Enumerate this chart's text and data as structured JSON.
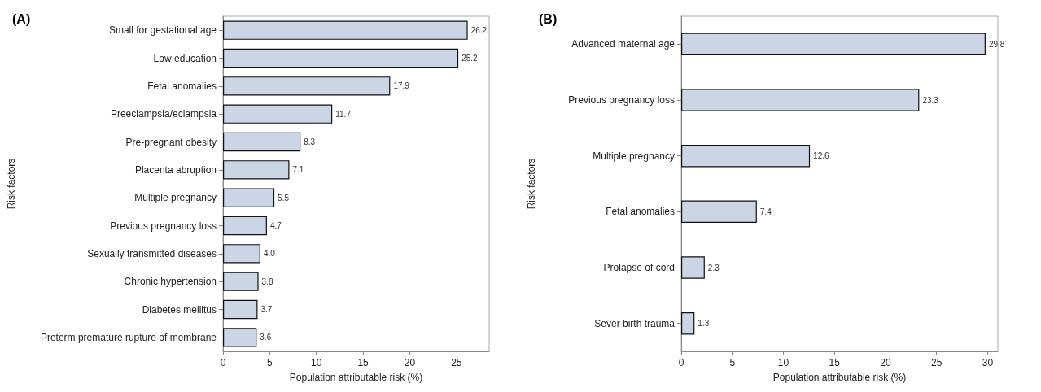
{
  "chart_data": [
    {
      "type": "bar",
      "title": "(A)",
      "orientation": "horizontal",
      "xlabel": "Population attributable risk (%)",
      "ylabel": "Risk factors",
      "categories": [
        "Small for gestational age",
        "Low education",
        "Fetal anomalies",
        "Preeclampsia/eclampsia",
        "Pre-pregnant obesity",
        "Placenta abruption",
        "Multiple pregnancy",
        "Previous pregnancy loss",
        "Sexually transmitted diseases",
        "Chronic hypertension",
        "Diabetes mellitus",
        "Preterm premature rupture of membrane"
      ],
      "values": [
        26.2,
        25.2,
        17.9,
        11.7,
        8.3,
        7.1,
        5.5,
        4.7,
        4.0,
        3.8,
        3.7,
        3.6
      ],
      "value_labels": [
        "26.2",
        "25.2",
        "17.9",
        "11.7",
        "8.3",
        "7.1",
        "5.5",
        "4.7",
        "4.0",
        "3.8",
        "3.7",
        "3.6"
      ],
      "color": "#cbd5e6",
      "xlim": [
        0,
        28.5
      ],
      "xticks": [
        0,
        5,
        10,
        15,
        20,
        25
      ],
      "grid": false
    },
    {
      "type": "bar",
      "title": "(B)",
      "orientation": "horizontal",
      "xlabel": "Population attributable risk (%)",
      "ylabel": "Risk factors",
      "categories": [
        "Advanced maternal age",
        "Previous pregnancy loss",
        "Multiple pregnancy",
        "Fetal anomalies",
        "Prolapse of cord",
        "Sever birth trauma"
      ],
      "values": [
        29.8,
        23.3,
        12.6,
        7.4,
        2.3,
        1.3
      ],
      "value_labels": [
        "29.8",
        "23.3",
        "12.6",
        "7.4",
        "2.3",
        "1.3"
      ],
      "color": "#cbd5e6",
      "xlim": [
        0,
        31
      ],
      "xticks": [
        0,
        5,
        10,
        15,
        20,
        25,
        30
      ],
      "grid": false
    }
  ]
}
